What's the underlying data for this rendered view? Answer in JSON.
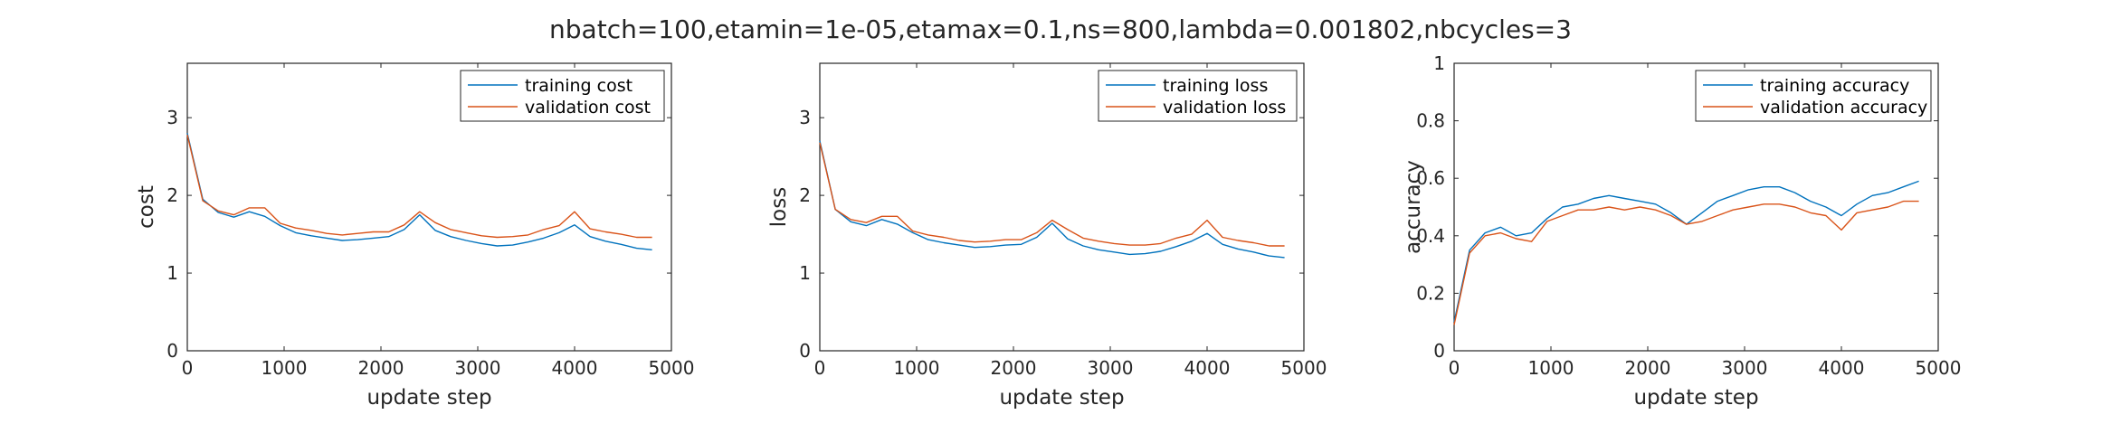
{
  "figure": {
    "title": "nbatch=100,etamin=1e-05,etamax=0.1,ns=800,lambda=0.001802,nbcycles=3"
  },
  "colors": {
    "series1": "#0072BD",
    "series2": "#D95319",
    "axis": "#262626"
  },
  "chart_data": [
    {
      "type": "line",
      "xlabel": "update step",
      "ylabel": "cost",
      "xlim": [
        0,
        5000
      ],
      "ylim": [
        0,
        3.7
      ],
      "xticks": [
        0,
        1000,
        2000,
        3000,
        4000,
        5000
      ],
      "yticks": [
        0,
        1,
        2,
        3
      ],
      "ytick_labels": [
        "0",
        "1",
        "2",
        "3"
      ],
      "grid": false,
      "legend_position": "top-right",
      "x": [
        0,
        160,
        320,
        480,
        640,
        800,
        960,
        1120,
        1280,
        1440,
        1600,
        1760,
        1920,
        2080,
        2240,
        2400,
        2560,
        2720,
        2880,
        3040,
        3200,
        3360,
        3520,
        3680,
        3840,
        4000,
        4160,
        4320,
        4480,
        4640,
        4800
      ],
      "series": [
        {
          "name": "training cost",
          "values": [
            2.8,
            1.95,
            1.78,
            1.72,
            1.79,
            1.73,
            1.61,
            1.52,
            1.48,
            1.45,
            1.42,
            1.43,
            1.45,
            1.47,
            1.56,
            1.75,
            1.55,
            1.47,
            1.42,
            1.38,
            1.35,
            1.36,
            1.4,
            1.45,
            1.52,
            1.62,
            1.47,
            1.41,
            1.37,
            1.32,
            1.3
          ]
        },
        {
          "name": "validation cost",
          "values": [
            2.78,
            1.93,
            1.8,
            1.75,
            1.84,
            1.84,
            1.64,
            1.58,
            1.55,
            1.51,
            1.49,
            1.51,
            1.53,
            1.53,
            1.62,
            1.79,
            1.65,
            1.56,
            1.52,
            1.48,
            1.46,
            1.47,
            1.49,
            1.56,
            1.61,
            1.79,
            1.57,
            1.53,
            1.5,
            1.46,
            1.46
          ]
        }
      ]
    },
    {
      "type": "line",
      "xlabel": "update step",
      "ylabel": "loss",
      "xlim": [
        0,
        5000
      ],
      "ylim": [
        0,
        3.7
      ],
      "xticks": [
        0,
        1000,
        2000,
        3000,
        4000,
        5000
      ],
      "yticks": [
        0,
        1,
        2,
        3
      ],
      "ytick_labels": [
        "0",
        "1",
        "2",
        "3"
      ],
      "grid": false,
      "legend_position": "top-right",
      "x": [
        0,
        160,
        320,
        480,
        640,
        800,
        960,
        1120,
        1280,
        1440,
        1600,
        1760,
        1920,
        2080,
        2240,
        2400,
        2560,
        2720,
        2880,
        3040,
        3200,
        3360,
        3520,
        3680,
        3840,
        4000,
        4160,
        4320,
        4480,
        4640,
        4800
      ],
      "series": [
        {
          "name": "training loss",
          "values": [
            2.7,
            1.82,
            1.66,
            1.61,
            1.69,
            1.63,
            1.52,
            1.43,
            1.39,
            1.36,
            1.33,
            1.34,
            1.36,
            1.37,
            1.46,
            1.64,
            1.44,
            1.35,
            1.3,
            1.27,
            1.24,
            1.25,
            1.28,
            1.34,
            1.41,
            1.51,
            1.37,
            1.31,
            1.27,
            1.22,
            1.2
          ]
        },
        {
          "name": "validation loss",
          "values": [
            2.68,
            1.82,
            1.69,
            1.65,
            1.73,
            1.73,
            1.54,
            1.49,
            1.46,
            1.42,
            1.4,
            1.41,
            1.43,
            1.43,
            1.52,
            1.68,
            1.56,
            1.45,
            1.41,
            1.38,
            1.36,
            1.36,
            1.38,
            1.45,
            1.5,
            1.68,
            1.46,
            1.42,
            1.39,
            1.35,
            1.35
          ]
        }
      ]
    },
    {
      "type": "line",
      "xlabel": "update step",
      "ylabel": "accuracy",
      "xlim": [
        0,
        5000
      ],
      "ylim": [
        0,
        1
      ],
      "xticks": [
        0,
        1000,
        2000,
        3000,
        4000,
        5000
      ],
      "yticks": [
        0,
        0.2,
        0.4,
        0.6,
        0.8,
        1
      ],
      "ytick_labels": [
        "0",
        "0.2",
        "0.4",
        "0.6",
        "0.8",
        "1"
      ],
      "grid": false,
      "legend_position": "top-right",
      "x": [
        0,
        160,
        320,
        480,
        640,
        800,
        960,
        1120,
        1280,
        1440,
        1600,
        1760,
        1920,
        2080,
        2240,
        2400,
        2560,
        2720,
        2880,
        3040,
        3200,
        3360,
        3520,
        3680,
        3840,
        4000,
        4160,
        4320,
        4480,
        4640,
        4800
      ],
      "series": [
        {
          "name": "training accuracy",
          "values": [
            0.1,
            0.35,
            0.41,
            0.43,
            0.4,
            0.41,
            0.46,
            0.5,
            0.51,
            0.53,
            0.54,
            0.53,
            0.52,
            0.51,
            0.48,
            0.44,
            0.48,
            0.52,
            0.54,
            0.56,
            0.57,
            0.57,
            0.55,
            0.52,
            0.5,
            0.47,
            0.51,
            0.54,
            0.55,
            0.57,
            0.59
          ]
        },
        {
          "name": "validation accuracy",
          "values": [
            0.09,
            0.34,
            0.4,
            0.41,
            0.39,
            0.38,
            0.45,
            0.47,
            0.49,
            0.49,
            0.5,
            0.49,
            0.5,
            0.49,
            0.47,
            0.44,
            0.45,
            0.47,
            0.49,
            0.5,
            0.51,
            0.51,
            0.5,
            0.48,
            0.47,
            0.42,
            0.48,
            0.49,
            0.5,
            0.52,
            0.52
          ]
        }
      ]
    }
  ]
}
